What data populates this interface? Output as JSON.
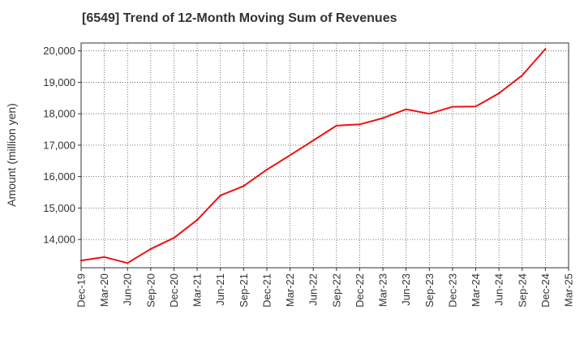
{
  "chart_data": {
    "type": "line",
    "title": "[6549]  Trend of 12-Month Moving Sum of Revenues",
    "xlabel": "",
    "ylabel": "Amount (million yen)",
    "ylim": [
      13100,
      20250
    ],
    "grid": true,
    "x_tick_labels": [
      "Dec-19",
      "Mar-20",
      "Jun-20",
      "Sep-20",
      "Dec-20",
      "Mar-21",
      "Jun-21",
      "Sep-21",
      "Dec-21",
      "Mar-22",
      "Jun-22",
      "Sep-22",
      "Dec-22",
      "Mar-23",
      "Jun-23",
      "Sep-23",
      "Dec-23",
      "Mar-24",
      "Jun-24",
      "Sep-24",
      "Dec-24",
      "Mar-25"
    ],
    "y_ticks": [
      14000,
      15000,
      16000,
      17000,
      18000,
      19000,
      20000
    ],
    "y_tick_labels": [
      "14,000",
      "15,000",
      "16,000",
      "17,000",
      "18,000",
      "19,000",
      "20,000"
    ],
    "series": [
      {
        "color": "#ee1111",
        "x": [
          "Dec-19",
          "Mar-20",
          "Jun-20",
          "Sep-20",
          "Dec-20",
          "Mar-21",
          "Jun-21",
          "Sep-21",
          "Dec-21",
          "Mar-22",
          "Jun-22",
          "Sep-22",
          "Dec-22",
          "Mar-23",
          "Jun-23",
          "Sep-23",
          "Dec-23",
          "Mar-24",
          "Jun-24",
          "Sep-24",
          "Dec-24"
        ],
        "values": [
          13330,
          13440,
          13250,
          13700,
          14050,
          14620,
          15400,
          15700,
          16220,
          16680,
          17150,
          17620,
          17660,
          17860,
          18140,
          18000,
          18220,
          18230,
          18650,
          19220,
          20060
        ]
      }
    ]
  }
}
